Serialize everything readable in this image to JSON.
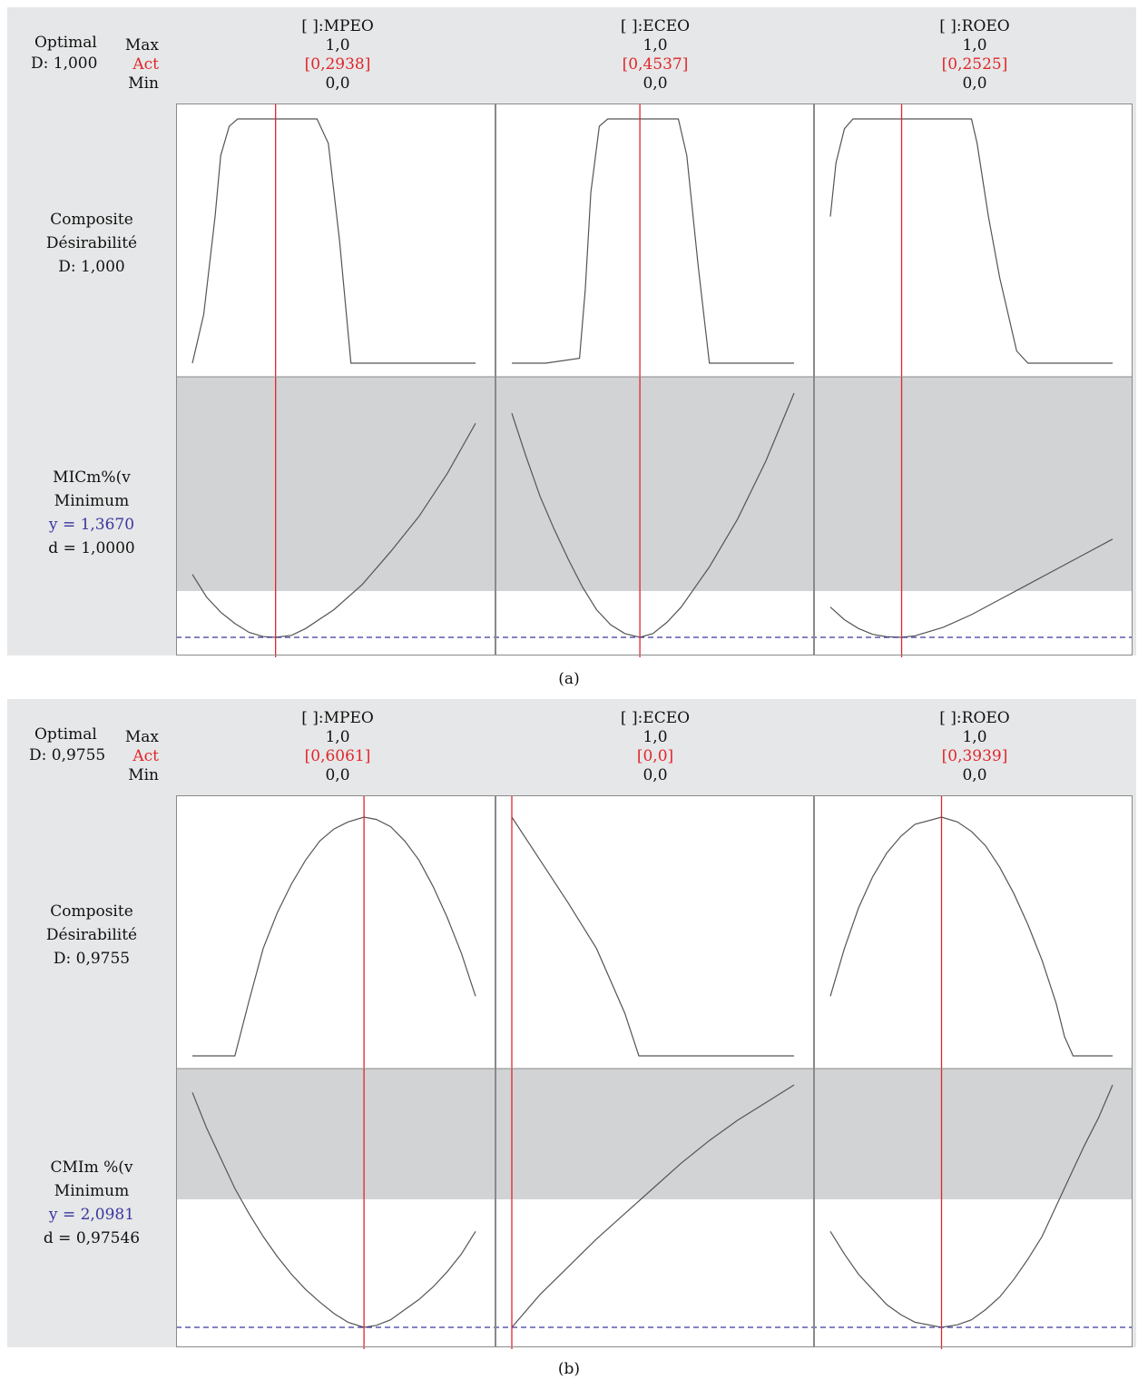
{
  "colors": {
    "panel_background": "#e6e7e8",
    "undesirable_region": "#d1d3d4",
    "curve": "#555555",
    "current_setting_line": "#e0262b",
    "target_dashed_line": "#3a36a0",
    "act_text": "#e0262b",
    "response_value_text": "#3a36a0"
  },
  "figures": [
    {
      "caption": "(a)",
      "optimal_label": "Optimal",
      "optimal_d": "D: 1,000",
      "row_labels": {
        "max": "Max",
        "act": "Act",
        "min": "Min"
      },
      "factors": [
        {
          "name": "[ ]:MPEO",
          "max": "1,0",
          "act": "[0,2938]",
          "min": "0,0"
        },
        {
          "name": "[ ]:ECEO",
          "max": "1,0",
          "act": "[0,4537]",
          "min": "0,0"
        },
        {
          "name": "[ ]:ROEO",
          "max": "1,0",
          "act": "[0,2525]",
          "min": "0,0"
        }
      ],
      "composite": {
        "line1": "Composite",
        "line2": "Désirabilité",
        "line3": "D: 1,000"
      },
      "response": {
        "name": "MICm%(v",
        "goal": "Minimum",
        "y": "y = 1,3670",
        "d": "d = 1,0000"
      }
    },
    {
      "caption": "(b)",
      "optimal_label": "Optimal",
      "optimal_d": "D: 0,9755",
      "row_labels": {
        "max": "Max",
        "act": "Act",
        "min": "Min"
      },
      "factors": [
        {
          "name": "[ ]:MPEO",
          "max": "1,0",
          "act": "[0,6061]",
          "min": "0,0"
        },
        {
          "name": "[ ]:ECEO",
          "max": "1,0",
          "act": "[0,0]",
          "min": "0,0"
        },
        {
          "name": "[ ]:ROEO",
          "max": "1,0",
          "act": "[0,3939]",
          "min": "0,0"
        }
      ],
      "composite": {
        "line1": "Composite",
        "line2": "Désirabilité",
        "line3": "D: 0,9755"
      },
      "response": {
        "name": "CMIm %(v",
        "goal": "Minimum",
        "y": "y = 2,0981",
        "d": "d = 0,97546"
      }
    }
  ],
  "chart_data": [
    {
      "type": "line",
      "chart": "response optimizer (a)",
      "factors": [
        "[ ]:MPEO",
        "[ ]:ECEO",
        "[ ]:ROEO"
      ],
      "x_range": [
        0.0,
        1.0
      ],
      "current_settings": [
        0.2938,
        0.4537,
        0.2525
      ],
      "composite_desirability": {
        "ylim": [
          0,
          1
        ],
        "series": [
          {
            "factor": "[ ]:MPEO",
            "x": [
              0,
              0.04,
              0.08,
              0.1,
              0.13,
              0.16,
              0.2,
              0.3,
              0.44,
              0.48,
              0.52,
              0.56,
              1.0
            ],
            "y": [
              0,
              0.2,
              0.6,
              0.85,
              0.97,
              1.0,
              1.0,
              1.0,
              1.0,
              0.9,
              0.5,
              0.0,
              0.0
            ]
          },
          {
            "factor": "[ ]:ECEO",
            "x": [
              0,
              0.12,
              0.24,
              0.26,
              0.28,
              0.31,
              0.34,
              0.45,
              0.59,
              0.62,
              0.66,
              0.7,
              1.0
            ],
            "y": [
              0,
              0.0,
              0.02,
              0.3,
              0.7,
              0.97,
              1.0,
              1.0,
              1.0,
              0.85,
              0.4,
              0.0,
              0.0
            ]
          },
          {
            "factor": "[ ]:ROEO",
            "x": [
              0,
              0.02,
              0.05,
              0.08,
              0.25,
              0.5,
              0.52,
              0.56,
              0.6,
              0.66,
              0.7,
              1.0
            ],
            "y": [
              0.6,
              0.82,
              0.96,
              1.0,
              1.0,
              1.0,
              0.9,
              0.6,
              0.35,
              0.05,
              0.0,
              0.0
            ]
          }
        ]
      },
      "response": {
        "name": "MICm%(v",
        "goal": "Minimum",
        "optimum_y": 1.367,
        "series": [
          {
            "factor": "[ ]:MPEO",
            "x": [
              0,
              0.05,
              0.1,
              0.15,
              0.2,
              0.25,
              0.2938,
              0.35,
              0.4,
              0.5,
              0.6,
              0.7,
              0.8,
              0.9,
              1.0
            ],
            "y": [
              0.25,
              0.16,
              0.1,
              0.055,
              0.02,
              0.003,
              0.0,
              0.008,
              0.035,
              0.11,
              0.21,
              0.34,
              0.48,
              0.65,
              0.85
            ]
          },
          {
            "factor": "[ ]:ECEO",
            "x": [
              0,
              0.05,
              0.1,
              0.15,
              0.2,
              0.25,
              0.3,
              0.35,
              0.4,
              0.4537,
              0.5,
              0.55,
              0.6,
              0.7,
              0.8,
              0.9,
              1.0
            ],
            "y": [
              0.89,
              0.72,
              0.56,
              0.43,
              0.31,
              0.2,
              0.11,
              0.05,
              0.015,
              0.0,
              0.015,
              0.06,
              0.12,
              0.28,
              0.47,
              0.7,
              0.97
            ]
          },
          {
            "factor": "[ ]:ROEO",
            "x": [
              0,
              0.05,
              0.1,
              0.15,
              0.2,
              0.2525,
              0.3,
              0.4,
              0.5,
              0.6,
              0.7,
              0.8,
              0.9,
              1.0
            ],
            "y": [
              0.12,
              0.07,
              0.035,
              0.012,
              0.002,
              0.0,
              0.006,
              0.04,
              0.09,
              0.15,
              0.21,
              0.27,
              0.33,
              0.39
            ]
          }
        ]
      }
    },
    {
      "type": "line",
      "chart": "response optimizer (b)",
      "factors": [
        "[ ]:MPEO",
        "[ ]:ECEO",
        "[ ]:ROEO"
      ],
      "x_range": [
        0.0,
        1.0
      ],
      "current_settings": [
        0.6061,
        0.0,
        0.3939
      ],
      "composite_desirability": {
        "ylim": [
          0,
          1
        ],
        "series": [
          {
            "factor": "[ ]:MPEO",
            "x": [
              0,
              0.1,
              0.15,
              0.2,
              0.25,
              0.3,
              0.35,
              0.4,
              0.45,
              0.5,
              0.55,
              0.6061,
              0.65,
              0.7,
              0.75,
              0.8,
              0.85,
              0.9,
              0.95,
              1.0
            ],
            "y": [
              0,
              0.0,
              0.0,
              0.23,
              0.45,
              0.6,
              0.72,
              0.82,
              0.9,
              0.95,
              0.98,
              1.0,
              0.99,
              0.96,
              0.9,
              0.82,
              0.71,
              0.58,
              0.43,
              0.25
            ]
          },
          {
            "factor": "[ ]:ECEO",
            "x": [
              0,
              0.1,
              0.2,
              0.3,
              0.4,
              0.45,
              0.6,
              0.8,
              1.0
            ],
            "y": [
              1.0,
              0.82,
              0.64,
              0.45,
              0.18,
              0.0,
              0.0,
              0.0,
              0.0
            ]
          },
          {
            "factor": "[ ]:ROEO",
            "x": [
              0,
              0.05,
              0.1,
              0.15,
              0.2,
              0.25,
              0.3,
              0.3939,
              0.45,
              0.5,
              0.55,
              0.6,
              0.65,
              0.7,
              0.75,
              0.8,
              0.83,
              0.86,
              0.9,
              1.0
            ],
            "y": [
              0.25,
              0.45,
              0.62,
              0.75,
              0.85,
              0.92,
              0.97,
              1.0,
              0.98,
              0.94,
              0.88,
              0.79,
              0.68,
              0.55,
              0.4,
              0.22,
              0.08,
              0.0,
              0.0,
              0.0
            ]
          }
        ]
      },
      "response": {
        "name": "CMIm %(v",
        "goal": "Minimum",
        "optimum_y": 2.0981,
        "series": [
          {
            "factor": "[ ]:MPEO",
            "x": [
              0,
              0.05,
              0.1,
              0.15,
              0.2,
              0.25,
              0.3,
              0.35,
              0.4,
              0.45,
              0.5,
              0.55,
              0.6061,
              0.65,
              0.7,
              0.75,
              0.8,
              0.85,
              0.9,
              0.95,
              1.0
            ],
            "y": [
              0.93,
              0.79,
              0.67,
              0.55,
              0.45,
              0.36,
              0.28,
              0.21,
              0.15,
              0.1,
              0.055,
              0.02,
              0.0,
              0.008,
              0.03,
              0.07,
              0.11,
              0.16,
              0.22,
              0.29,
              0.38
            ]
          },
          {
            "factor": "[ ]:ECEO",
            "x": [
              0,
              0.1,
              0.2,
              0.3,
              0.4,
              0.5,
              0.6,
              0.7,
              0.8,
              0.9,
              1.0
            ],
            "y": [
              0.0,
              0.13,
              0.24,
              0.35,
              0.45,
              0.55,
              0.65,
              0.74,
              0.82,
              0.89,
              0.96
            ]
          },
          {
            "factor": "[ ]:ROEO",
            "x": [
              0,
              0.05,
              0.1,
              0.15,
              0.2,
              0.25,
              0.3,
              0.3939,
              0.45,
              0.5,
              0.55,
              0.6,
              0.65,
              0.7,
              0.75,
              0.8,
              0.85,
              0.9,
              0.95,
              1.0
            ],
            "y": [
              0.38,
              0.29,
              0.21,
              0.15,
              0.09,
              0.05,
              0.02,
              0.0,
              0.01,
              0.03,
              0.07,
              0.12,
              0.19,
              0.27,
              0.36,
              0.48,
              0.6,
              0.72,
              0.83,
              0.96
            ]
          }
        ]
      }
    }
  ]
}
